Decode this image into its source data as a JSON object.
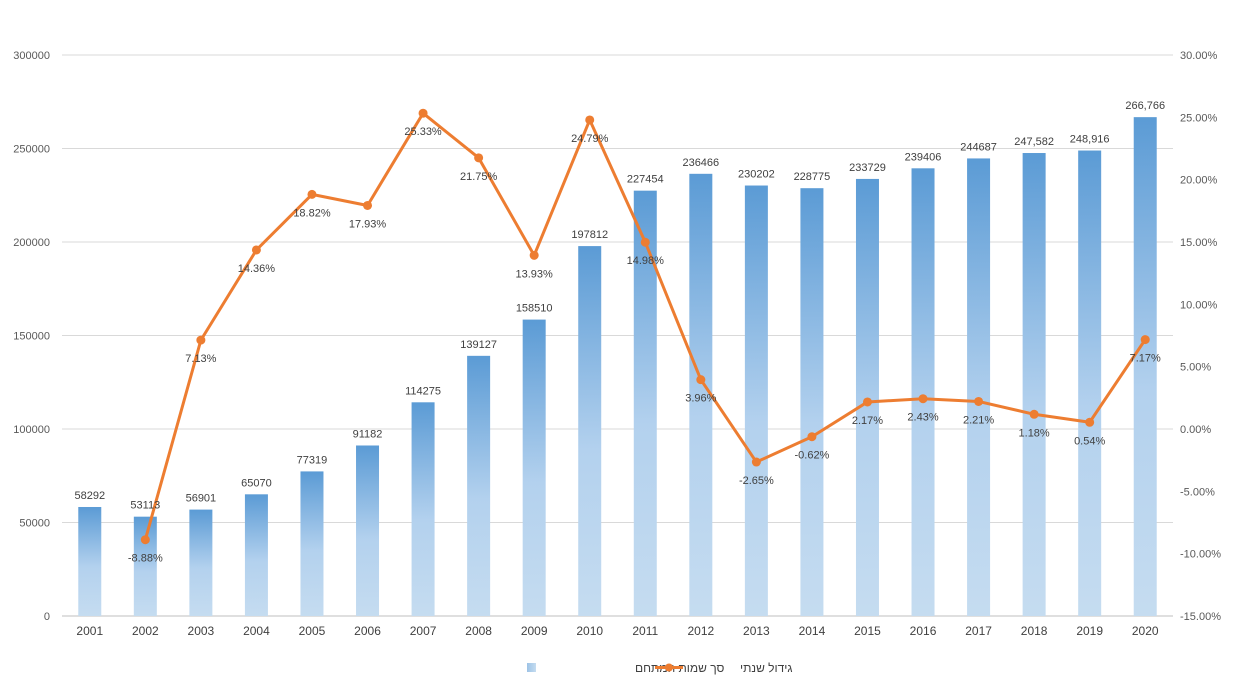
{
  "chart_data": {
    "type": "bar",
    "categories": [
      "2001",
      "2002",
      "2003",
      "2004",
      "2005",
      "2006",
      "2007",
      "2008",
      "2009",
      "2010",
      "2011",
      "2012",
      "2013",
      "2014",
      "2015",
      "2016",
      "2017",
      "2018",
      "2019",
      "2020"
    ],
    "series": [
      {
        "name": "סך שמות המתחם",
        "type": "bar",
        "axis": "left",
        "values": [
          58292,
          53113,
          56901,
          65070,
          77319,
          91182,
          114275,
          139127,
          158510,
          197812,
          227454,
          236466,
          230202,
          228775,
          233729,
          239406,
          244687,
          247582,
          248916,
          266766
        ],
        "labels": [
          "58292",
          "53113",
          "56901",
          "65070",
          "77319",
          "91182",
          "114275",
          "139127",
          "158510",
          "197812",
          "227454",
          "236466",
          "230202",
          "228775",
          "233729",
          "239406",
          "244687",
          "247,582",
          "248,916",
          "266,766"
        ],
        "color": "#5b9bd5"
      },
      {
        "name": "גידול שנתי",
        "type": "line",
        "axis": "right",
        "values": [
          null,
          -8.88,
          7.13,
          14.36,
          18.82,
          17.93,
          25.33,
          21.75,
          13.93,
          24.79,
          14.98,
          3.96,
          -2.65,
          -0.62,
          2.17,
          2.43,
          2.21,
          1.18,
          0.54,
          7.17
        ],
        "labels": [
          "",
          "-8.88%",
          "7.13%",
          "14.36%",
          "18.82%",
          "17.93%",
          "25.33%",
          "21.75%",
          "13.93%",
          "24.79%",
          "14.98%",
          "3.96%",
          "-2.65%",
          "-0.62%",
          "2.17%",
          "2.43%",
          "2.21%",
          "1.18%",
          "0.54%",
          "7.17%"
        ],
        "color": "#ed7d31"
      }
    ],
    "y_left": {
      "range": [
        0,
        300000
      ],
      "ticks": [
        "0",
        "50000",
        "100000",
        "150000",
        "200000",
        "250000",
        "300000"
      ]
    },
    "y_right": {
      "range": [
        -15,
        30
      ],
      "ticks": [
        "-15.00%",
        "-10.00%",
        "-5.00%",
        "0.00%",
        "5.00%",
        "10.00%",
        "15.00%",
        "20.00%",
        "25.00%",
        "30.00%"
      ]
    },
    "grid": true,
    "legend_position": "bottom",
    "title": "",
    "xlabel": "",
    "ylabel": ""
  }
}
